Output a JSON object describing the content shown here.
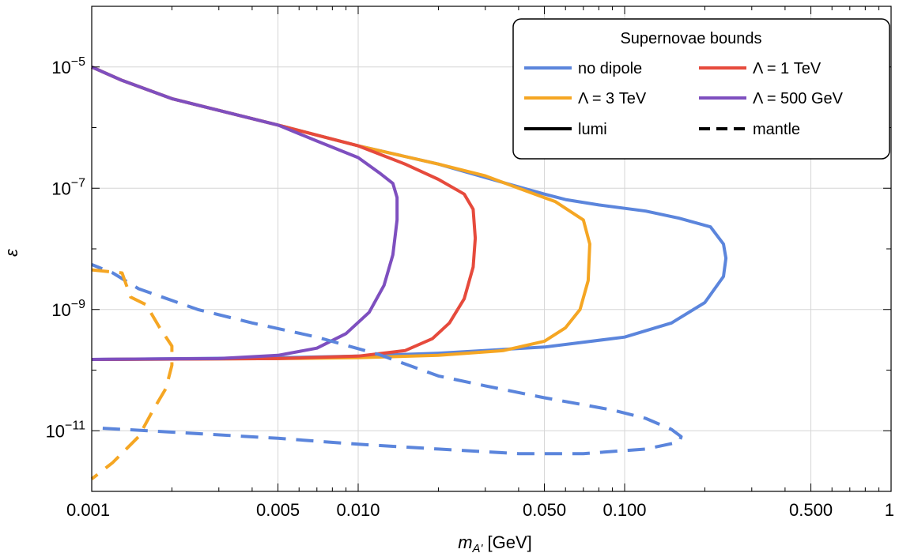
{
  "chart_data": {
    "type": "line",
    "xlabel": "m",
    "xlabel_sub": "A'",
    "xlabel_unit": " [GeV]",
    "ylabel": "ε",
    "x_scale": "log",
    "y_scale": "log",
    "xlim": [
      0.001,
      1
    ],
    "ylim": [
      1e-12,
      0.0001
    ],
    "grid": true,
    "x_ticks": [
      {
        "value": 0.001,
        "label": "0.001"
      },
      {
        "value": 0.005,
        "label": "0.005"
      },
      {
        "value": 0.01,
        "label": "0.010"
      },
      {
        "value": 0.05,
        "label": "0.050"
      },
      {
        "value": 0.1,
        "label": "0.100"
      },
      {
        "value": 0.5,
        "label": "0.500"
      },
      {
        "value": 1,
        "label": "1"
      }
    ],
    "y_ticks": [
      {
        "value": 1e-05,
        "base": "10",
        "exp": "−5"
      },
      {
        "value": 1e-07,
        "base": "10",
        "exp": "−7"
      },
      {
        "value": 1e-09,
        "base": "10",
        "exp": "−9"
      },
      {
        "value": 1e-11,
        "base": "10",
        "exp": "−11"
      }
    ],
    "colors": {
      "no_dipole": "#5b85dc",
      "tev3": "#f5a623",
      "tev1": "#e64a3c",
      "gev500": "#7e4fbf"
    },
    "legend": {
      "title": "Supernovae bounds",
      "placement": "top-right",
      "entries": [
        {
          "label": "no dipole",
          "color": "#5b85dc",
          "style": "solid"
        },
        {
          "label": "Λ = 1 TeV",
          "color": "#e64a3c",
          "style": "solid"
        },
        {
          "label": "Λ = 3 TeV",
          "color": "#f5a623",
          "style": "solid"
        },
        {
          "label": "Λ = 500 GeV",
          "color": "#7e4fbf",
          "style": "solid"
        },
        {
          "label": "lumi",
          "color": "#000000",
          "style": "solid"
        },
        {
          "label": "mantle",
          "color": "#000000",
          "style": "dashed"
        }
      ]
    },
    "series": [
      {
        "name": "no dipole",
        "style": "solid",
        "color": "#5b85dc",
        "points": [
          [
            0.001,
            1.5e-10
          ],
          [
            0.005,
            1.6e-10
          ],
          [
            0.01,
            1.7e-10
          ],
          [
            0.02,
            1.9e-10
          ],
          [
            0.05,
            2.4e-10
          ],
          [
            0.1,
            3.5e-10
          ],
          [
            0.15,
            6e-10
          ],
          [
            0.2,
            1.3e-09
          ],
          [
            0.235,
            3.5e-09
          ],
          [
            0.24,
            7e-09
          ],
          [
            0.235,
            1.2e-08
          ],
          [
            0.21,
            2.3e-08
          ],
          [
            0.16,
            3.2e-08
          ],
          [
            0.12,
            4.2e-08
          ],
          [
            0.08,
            5.3e-08
          ],
          [
            0.06,
            6.5e-08
          ],
          [
            0.05,
            8e-08
          ],
          [
            0.03,
            1.5e-07
          ],
          [
            0.02,
            2.5e-07
          ],
          [
            0.01,
            5e-07
          ],
          [
            0.005,
            1.1e-06
          ],
          [
            0.002,
            3e-06
          ],
          [
            0.0013,
            6e-06
          ],
          [
            0.001,
            1e-05
          ]
        ]
      },
      {
        "name": "Λ = 3 TeV",
        "style": "solid",
        "color": "#f5a623",
        "points": [
          [
            0.001,
            1.5e-10
          ],
          [
            0.005,
            1.55e-10
          ],
          [
            0.01,
            1.6e-10
          ],
          [
            0.02,
            1.75e-10
          ],
          [
            0.035,
            2.1e-10
          ],
          [
            0.05,
            3e-10
          ],
          [
            0.06,
            5e-10
          ],
          [
            0.068,
            1e-09
          ],
          [
            0.073,
            3e-09
          ],
          [
            0.074,
            1.2e-08
          ],
          [
            0.07,
            3e-08
          ],
          [
            0.055,
            6e-08
          ],
          [
            0.04,
            1e-07
          ],
          [
            0.03,
            1.6e-07
          ],
          [
            0.02,
            2.5e-07
          ],
          [
            0.01,
            5e-07
          ],
          [
            0.005,
            1.1e-06
          ],
          [
            0.002,
            3e-06
          ],
          [
            0.0013,
            6e-06
          ],
          [
            0.001,
            1e-05
          ]
        ]
      },
      {
        "name": "Λ = 1 TeV",
        "style": "solid",
        "color": "#e64a3c",
        "points": [
          [
            0.001,
            1.5e-10
          ],
          [
            0.005,
            1.55e-10
          ],
          [
            0.01,
            1.7e-10
          ],
          [
            0.015,
            2.1e-10
          ],
          [
            0.019,
            3.3e-10
          ],
          [
            0.022,
            6e-10
          ],
          [
            0.025,
            1.5e-09
          ],
          [
            0.027,
            5e-09
          ],
          [
            0.0275,
            1.5e-08
          ],
          [
            0.027,
            4.5e-08
          ],
          [
            0.025,
            8e-08
          ],
          [
            0.02,
            1.4e-07
          ],
          [
            0.015,
            2.5e-07
          ],
          [
            0.01,
            5e-07
          ],
          [
            0.005,
            1.1e-06
          ],
          [
            0.002,
            3e-06
          ],
          [
            0.0013,
            6e-06
          ],
          [
            0.001,
            1e-05
          ]
        ]
      },
      {
        "name": "Λ = 500 GeV",
        "style": "solid",
        "color": "#7e4fbf",
        "points": [
          [
            0.001,
            1.5e-10
          ],
          [
            0.003,
            1.55e-10
          ],
          [
            0.005,
            1.75e-10
          ],
          [
            0.007,
            2.3e-10
          ],
          [
            0.009,
            4e-10
          ],
          [
            0.011,
            9e-10
          ],
          [
            0.0125,
            2.5e-09
          ],
          [
            0.0135,
            8e-09
          ],
          [
            0.014,
            3e-08
          ],
          [
            0.014,
            7e-08
          ],
          [
            0.0135,
            1.2e-07
          ],
          [
            0.012,
            1.8e-07
          ],
          [
            0.01,
            3.2e-07
          ],
          [
            0.007,
            6e-07
          ],
          [
            0.005,
            1.1e-06
          ],
          [
            0.002,
            3e-06
          ],
          [
            0.0013,
            6e-06
          ],
          [
            0.001,
            1e-05
          ]
        ]
      },
      {
        "name": "no dipole mantle",
        "style": "dashed",
        "color": "#5b85dc",
        "points": [
          [
            0.0011,
            1.1e-11
          ],
          [
            0.002,
            9.5e-12
          ],
          [
            0.005,
            7.5e-12
          ],
          [
            0.01,
            6e-12
          ],
          [
            0.02,
            5e-12
          ],
          [
            0.04,
            4.2e-12
          ],
          [
            0.07,
            4.2e-12
          ],
          [
            0.12,
            5e-12
          ],
          [
            0.16,
            6.5e-12
          ],
          [
            0.163,
            8e-12
          ],
          [
            0.15,
            1.05e-11
          ],
          [
            0.12,
            1.6e-11
          ],
          [
            0.09,
            2.2e-11
          ],
          [
            0.05,
            3.5e-11
          ],
          [
            0.03,
            5.5e-11
          ],
          [
            0.02,
            8e-11
          ],
          [
            0.012,
            1.8e-10
          ],
          [
            0.007,
            3.5e-10
          ],
          [
            0.004,
            6e-10
          ],
          [
            0.0025,
            1e-09
          ],
          [
            0.0015,
            2.2e-09
          ],
          [
            0.0012,
            4e-09
          ],
          [
            0.001,
            5.5e-09
          ]
        ]
      },
      {
        "name": "Λ = 3 TeV mantle",
        "style": "dashed",
        "color": "#f5a623",
        "points": [
          [
            0.001,
            4.5e-09
          ],
          [
            0.0013,
            4e-09
          ],
          [
            0.0014,
            1.6e-09
          ],
          [
            0.0016,
            1.2e-09
          ],
          [
            0.0018,
            5e-10
          ],
          [
            0.002,
            2.5e-10
          ],
          [
            0.002,
            1.2e-10
          ],
          [
            0.0019,
            5e-11
          ],
          [
            0.0017,
            2.2e-11
          ],
          [
            0.0015,
            8e-12
          ],
          [
            0.0012,
            3e-12
          ],
          [
            0.001,
            1.6e-12
          ]
        ]
      }
    ]
  }
}
